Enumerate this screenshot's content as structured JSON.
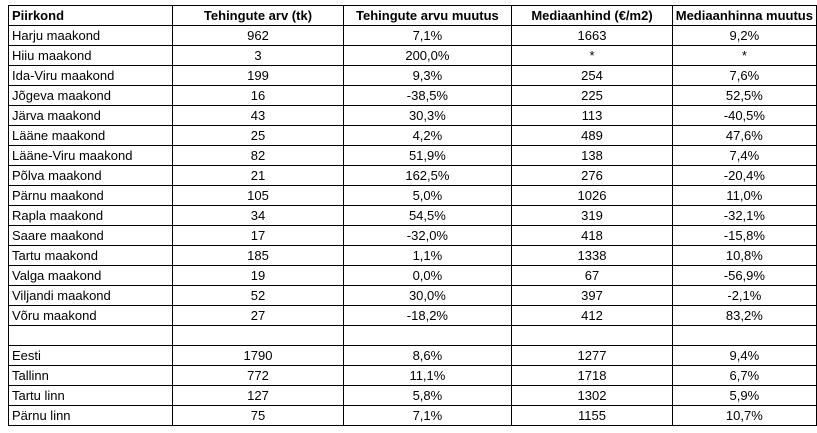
{
  "table": {
    "headers": [
      "Piirkond",
      "Tehingute arv (tk)",
      "Tehingute arvu muutus",
      "Mediaanhind (€/m2)",
      "Mediaanhinna muutus"
    ],
    "rows": [
      [
        "Harju maakond",
        "962",
        "7,1%",
        "1663",
        "9,2%"
      ],
      [
        "Hiiu maakond",
        "3",
        "200,0%",
        "*",
        "*"
      ],
      [
        "Ida-Viru maakond",
        "199",
        "9,3%",
        "254",
        "7,6%"
      ],
      [
        "Jõgeva maakond",
        "16",
        "-38,5%",
        "225",
        "52,5%"
      ],
      [
        "Järva maakond",
        "43",
        "30,3%",
        "113",
        "-40,5%"
      ],
      [
        "Lääne maakond",
        "25",
        "4,2%",
        "489",
        "47,6%"
      ],
      [
        "Lääne-Viru maakond",
        "82",
        "51,9%",
        "138",
        "7,4%"
      ],
      [
        "Põlva maakond",
        "21",
        "162,5%",
        "276",
        "-20,4%"
      ],
      [
        "Pärnu maakond",
        "105",
        "5,0%",
        "1026",
        "11,0%"
      ],
      [
        "Rapla maakond",
        "34",
        "54,5%",
        "319",
        "-32,1%"
      ],
      [
        "Saare maakond",
        "17",
        "-32,0%",
        "418",
        "-15,8%"
      ],
      [
        "Tartu maakond",
        "185",
        "1,1%",
        "1338",
        "10,8%"
      ],
      [
        "Valga maakond",
        "19",
        "0,0%",
        "67",
        "-56,9%"
      ],
      [
        "Viljandi maakond",
        "52",
        "30,0%",
        "397",
        "-2,1%"
      ],
      [
        "Võru maakond",
        "27",
        "-18,2%",
        "412",
        "83,2%"
      ],
      [
        "",
        "",
        "",
        "",
        ""
      ],
      [
        "Eesti",
        "1790",
        "8,6%",
        "1277",
        "9,4%"
      ],
      [
        "Tallinn",
        "772",
        "11,1%",
        "1718",
        "6,7%"
      ],
      [
        "Tartu linn",
        "127",
        "5,8%",
        "1302",
        "5,9%"
      ],
      [
        "Pärnu linn",
        "75",
        "7,1%",
        "1155",
        "10,7%"
      ]
    ]
  }
}
